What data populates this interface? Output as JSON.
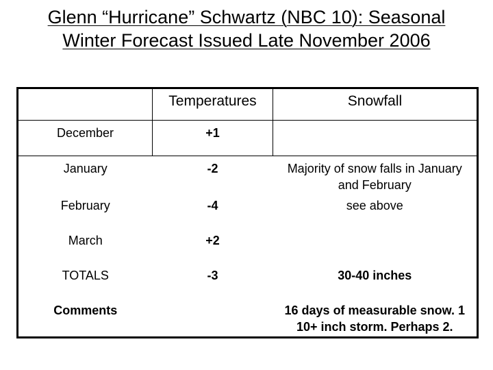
{
  "header": {
    "title_lines": [
      "Glenn “Hurricane” Schwartz (NBC 10):  Seasonal",
      "Winter Forecast Issued Late November 2006"
    ]
  },
  "table": {
    "columns": [
      "",
      "Temperatures",
      "Snowfall"
    ],
    "rows": [
      [
        "December",
        "+1",
        ""
      ],
      [
        "January",
        "-2",
        "Majority of snow falls in January and February"
      ],
      [
        "February",
        "-4",
        "see above"
      ],
      [
        "March",
        "+2",
        ""
      ],
      [
        "TOTALS",
        "-3",
        "30-40 inches"
      ],
      [
        "Comments",
        "",
        "16 days of measurable snow.  1 10+ inch storm.  Perhaps 2."
      ]
    ]
  }
}
